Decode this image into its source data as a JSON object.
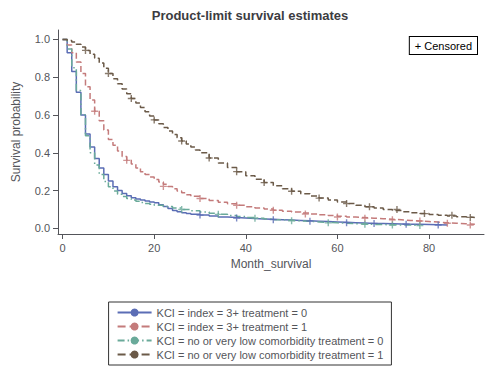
{
  "chart_data": {
    "type": "step",
    "title": "Product-limit survival estimates",
    "xlabel": "Month_survival",
    "ylabel": "Survival probability",
    "xlim": [
      -1,
      92
    ],
    "ylim": [
      -0.03,
      1.05
    ],
    "xticks": [
      0,
      20,
      40,
      60,
      80
    ],
    "yticks": [
      {
        "value": 0.0,
        "label": "0.0"
      },
      0.2,
      0.4,
      0.6,
      0.8,
      {
        "value": 1.0,
        "label": "1.0"
      }
    ],
    "grid": false,
    "legend": "bottom",
    "annotation": "+ Censored",
    "series": [
      {
        "name": "KCI = index = 3+ treatment = 0",
        "color": "#5b6db5",
        "line_style": "solid",
        "marker": "plus",
        "x": [
          0,
          0.5,
          1,
          2,
          3,
          4,
          5,
          6,
          7,
          8,
          9,
          10,
          11,
          12,
          13,
          14,
          15,
          16,
          17,
          18,
          19,
          20,
          21,
          22,
          23,
          24,
          25,
          26,
          27,
          28,
          30,
          32,
          34,
          36,
          38,
          40,
          42,
          44,
          46,
          48,
          50,
          52,
          54,
          56,
          58,
          60,
          62,
          64,
          66,
          68,
          70,
          72,
          74,
          76,
          78,
          80,
          82,
          84
        ],
        "values": [
          1.0,
          1.0,
          0.93,
          0.83,
          0.72,
          0.6,
          0.5,
          0.43,
          0.37,
          0.32,
          0.285,
          0.25,
          0.22,
          0.2,
          0.185,
          0.172,
          0.162,
          0.155,
          0.15,
          0.145,
          0.14,
          0.135,
          0.125,
          0.115,
          0.105,
          0.095,
          0.088,
          0.082,
          0.078,
          0.074,
          0.07,
          0.065,
          0.06,
          0.057,
          0.055,
          0.052,
          0.05,
          0.048,
          0.046,
          0.044,
          0.042,
          0.04,
          0.038,
          0.036,
          0.034,
          0.032,
          0.03,
          0.028,
          0.026,
          0.025,
          0.024,
          0.023,
          0.022,
          0.021,
          0.02,
          0.019,
          0.018,
          0.017
        ],
        "censor_x": [
          30,
          38,
          46,
          54,
          62,
          68,
          75,
          82
        ],
        "censor_values": [
          0.07,
          0.055,
          0.046,
          0.038,
          0.03,
          0.026,
          0.022,
          0.018
        ]
      },
      {
        "name": "KCI = index = 3+ treatment = 1",
        "color": "#c47b7b",
        "line_style": "dashed",
        "marker": "plus",
        "x": [
          0,
          1,
          2,
          3,
          4,
          5,
          6,
          7,
          8,
          9,
          10,
          11,
          12,
          13,
          14,
          15,
          16,
          17,
          18,
          19,
          20,
          21,
          22,
          23,
          24,
          25,
          26,
          27,
          28,
          30,
          32,
          34,
          36,
          38,
          40,
          42,
          44,
          46,
          48,
          50,
          52,
          54,
          56,
          58,
          60,
          62,
          64,
          66,
          68,
          70,
          72,
          74,
          76,
          78,
          80,
          82,
          84,
          86,
          88,
          90
        ],
        "values": [
          1.0,
          0.97,
          0.93,
          0.88,
          0.82,
          0.75,
          0.68,
          0.62,
          0.57,
          0.52,
          0.47,
          0.44,
          0.41,
          0.38,
          0.36,
          0.34,
          0.32,
          0.3,
          0.285,
          0.272,
          0.258,
          0.245,
          0.233,
          0.222,
          0.21,
          0.198,
          0.188,
          0.178,
          0.17,
          0.158,
          0.148,
          0.138,
          0.13,
          0.122,
          0.114,
          0.108,
          0.102,
          0.096,
          0.091,
          0.086,
          0.081,
          0.076,
          0.072,
          0.068,
          0.064,
          0.06,
          0.057,
          0.054,
          0.051,
          0.048,
          0.045,
          0.042,
          0.039,
          0.036,
          0.033,
          0.03,
          0.027,
          0.024,
          0.021,
          0.018
        ],
        "censor_x": [
          7,
          14,
          22,
          30,
          38,
          46,
          53,
          60,
          66,
          72,
          78,
          84,
          89
        ],
        "censor_values": [
          0.62,
          0.36,
          0.222,
          0.158,
          0.122,
          0.096,
          0.076,
          0.06,
          0.054,
          0.045,
          0.039,
          0.027,
          0.018
        ]
      },
      {
        "name": "KCI = no or very low comorbidity treatment = 0",
        "color": "#6aaa9a",
        "line_style": "dashdot",
        "marker": "plus",
        "x": [
          0,
          0.5,
          1,
          2,
          3,
          4,
          5,
          6,
          7,
          8,
          9,
          10,
          11,
          12,
          13,
          14,
          15,
          16,
          17,
          18,
          19,
          20,
          22,
          24,
          26,
          28,
          30,
          32,
          34,
          36,
          38,
          40,
          42,
          44,
          46,
          48,
          50,
          52,
          54,
          56,
          58,
          60,
          62,
          64,
          66,
          68,
          70,
          72,
          74,
          76,
          78
        ],
        "values": [
          1.0,
          1.0,
          0.95,
          0.85,
          0.73,
          0.6,
          0.49,
          0.4,
          0.335,
          0.285,
          0.248,
          0.22,
          0.198,
          0.18,
          0.168,
          0.158,
          0.15,
          0.143,
          0.137,
          0.132,
          0.127,
          0.122,
          0.115,
          0.108,
          0.1,
          0.093,
          0.086,
          0.08,
          0.074,
          0.068,
          0.063,
          0.058,
          0.054,
          0.05,
          0.046,
          0.043,
          0.04,
          0.037,
          0.034,
          0.031,
          0.029,
          0.027,
          0.025,
          0.023,
          0.021,
          0.02,
          0.019,
          0.018,
          0.017,
          0.016,
          0.015
        ],
        "censor_x": [
          26,
          34,
          42,
          50,
          58,
          66,
          72,
          78
        ],
        "censor_values": [
          0.1,
          0.074,
          0.054,
          0.04,
          0.029,
          0.021,
          0.018,
          0.015
        ]
      },
      {
        "name": "KCI = no or very low comorbidity treatment = 1",
        "color": "#6b5a48",
        "line_style": "dashed",
        "marker": "plus",
        "x": [
          0,
          1,
          2,
          3,
          4,
          5,
          6,
          7,
          8,
          9,
          10,
          11,
          12,
          13,
          14,
          15,
          16,
          17,
          18,
          19,
          20,
          21,
          22,
          23,
          24,
          25,
          26,
          27,
          28,
          29,
          30,
          32,
          34,
          36,
          38,
          40,
          42,
          44,
          46,
          48,
          50,
          52,
          54,
          56,
          58,
          60,
          62,
          64,
          66,
          68,
          70,
          72,
          74,
          76,
          78,
          80,
          82,
          84,
          86,
          88,
          90
        ],
        "values": [
          1.0,
          0.995,
          0.987,
          0.975,
          0.96,
          0.942,
          0.922,
          0.9,
          0.875,
          0.848,
          0.82,
          0.792,
          0.765,
          0.738,
          0.712,
          0.687,
          0.663,
          0.64,
          0.617,
          0.595,
          0.574,
          0.554,
          0.534,
          0.515,
          0.497,
          0.479,
          0.462,
          0.446,
          0.43,
          0.415,
          0.4,
          0.372,
          0.346,
          0.322,
          0.3,
          0.279,
          0.26,
          0.242,
          0.225,
          0.21,
          0.196,
          0.183,
          0.171,
          0.16,
          0.15,
          0.14,
          0.131,
          0.122,
          0.114,
          0.107,
          0.1,
          0.094,
          0.088,
          0.083,
          0.078,
          0.073,
          0.069,
          0.065,
          0.061,
          0.058,
          0.055
        ],
        "censor_x": [
          5,
          10,
          15,
          20,
          26,
          32,
          38,
          44,
          50,
          56,
          62,
          67,
          73,
          79,
          85,
          89
        ],
        "censor_values": [
          0.942,
          0.82,
          0.687,
          0.574,
          0.462,
          0.372,
          0.3,
          0.242,
          0.196,
          0.16,
          0.131,
          0.114,
          0.1,
          0.078,
          0.069,
          0.058
        ]
      }
    ]
  }
}
